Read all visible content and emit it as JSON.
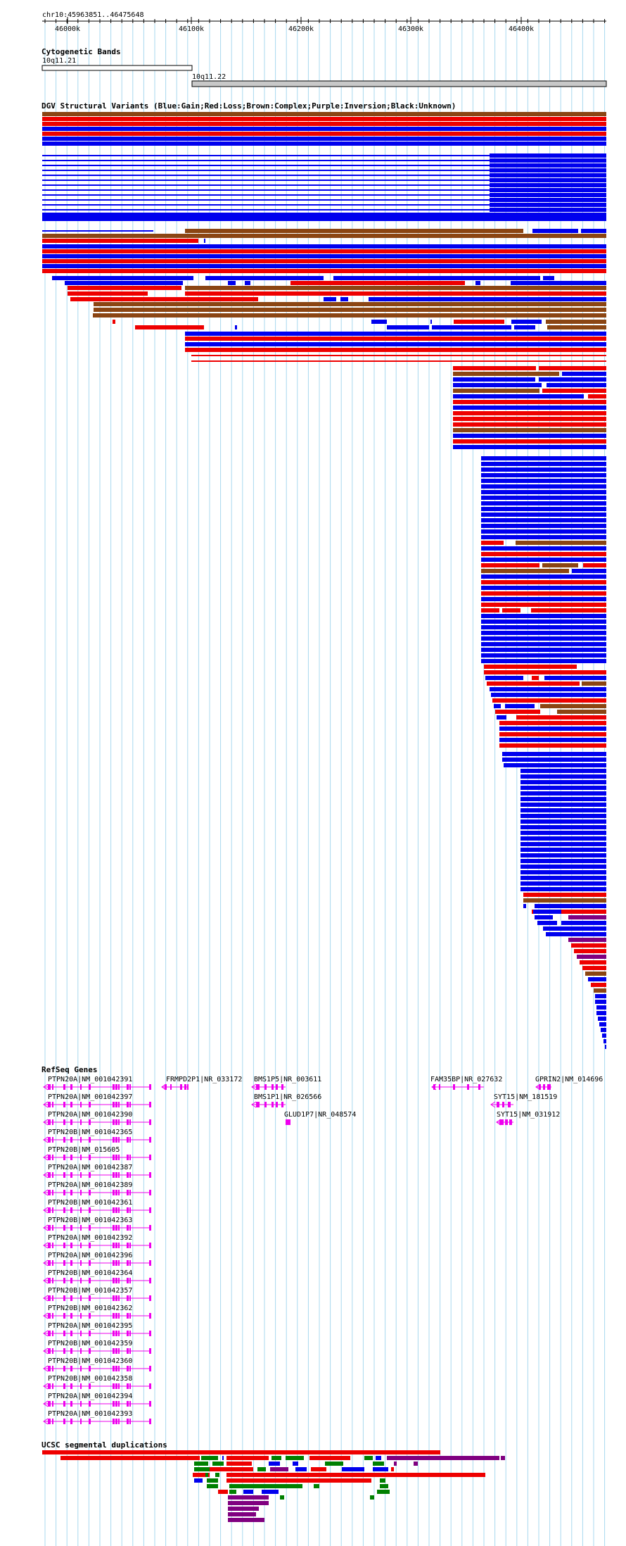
{
  "ruler": {
    "position_label": "chr10:45963851..46475648",
    "ticks": [
      "46000k",
      "46100k",
      "46200k",
      "46300k",
      "46400k"
    ]
  },
  "cytoband": {
    "title": "Cytogenetic Bands",
    "bands": [
      {
        "label": "10q11.21",
        "fill": "#ffffff"
      },
      {
        "label": "10q11.22",
        "fill": "#c8c8c8"
      }
    ]
  },
  "dgv": {
    "title": "DGV Structural Variants (Blue:Gain;Red:Loss;Brown:Complex;Purple:Inversion;Black:Unknown)"
  },
  "refseq": {
    "title": "RefSeq Genes",
    "left_column": [
      "PTPN20A|NM_001042391",
      "PTPN20A|NM_001042397",
      "PTPN20A|NM_001042390",
      "PTPN20B|NM_001042365",
      "PTPN20B|NM_015605",
      "PTPN20A|NM_001042387",
      "PTPN20A|NM_001042389",
      "PTPN20B|NM_001042361",
      "PTPN20B|NM_001042363",
      "PTPN20A|NM_001042392",
      "PTPN20A|NM_001042396",
      "PTPN20B|NM_001042364",
      "PTPN20B|NM_001042357",
      "PTPN20B|NM_001042362",
      "PTPN20A|NM_001042395",
      "PTPN20B|NM_001042359",
      "PTPN20B|NM_001042360",
      "PTPN20B|NM_001042358",
      "PTPN20A|NM_001042394",
      "PTPN20A|NM_001042393"
    ],
    "other_genes": [
      "FRMPD2P1|NR_033172",
      "BMS1P5|NR_003611",
      "BMS1P1|NR_026566",
      "GLUD1P7|NR_048574",
      "FAM35BP|NR_027632",
      "GPRIN2|NM_014696",
      "SYT15|NM_181519",
      "SYT15|NM_031912"
    ]
  },
  "segdup": {
    "title": "UCSC segmental duplications"
  },
  "colors": {
    "gain": "#0000ee",
    "loss": "#ee0000",
    "complex": "#8b4513",
    "inversion": "#800080",
    "gene": "#ee00ee",
    "segdup_red": "#ee0000",
    "segdup_green": "#008000",
    "segdup_blue": "#0000ee",
    "grid": "#a8d8ef"
  }
}
